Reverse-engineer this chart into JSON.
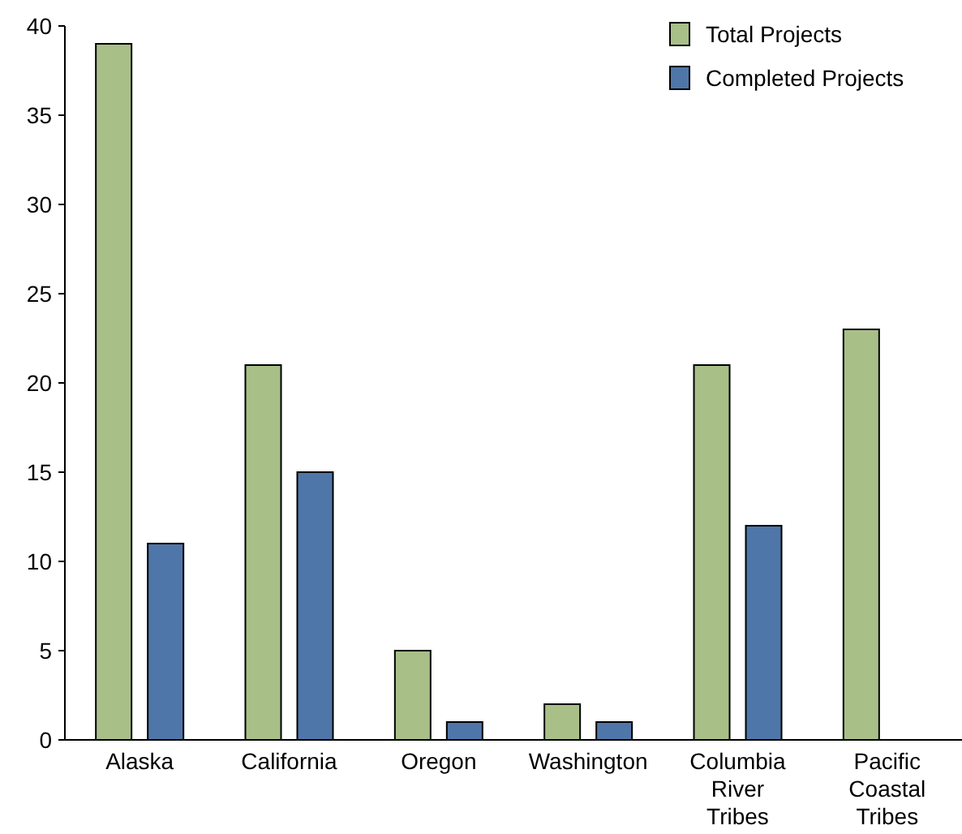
{
  "chart_data": {
    "type": "bar",
    "categories": [
      "Alaska",
      "California",
      "Oregon",
      "Washington",
      "Columbia River Tribes",
      "Pacific Coastal Tribes"
    ],
    "series": [
      {
        "name": "Total Projects",
        "color": "#a8bf88",
        "values": [
          39,
          21,
          5,
          2,
          21,
          23
        ]
      },
      {
        "name": "Completed Projects",
        "color": "#4f76a8",
        "values": [
          11,
          15,
          1,
          1,
          12,
          null
        ]
      }
    ],
    "ylim": [
      0,
      40
    ],
    "yticks": [
      0,
      5,
      10,
      15,
      20,
      25,
      30,
      35,
      40
    ],
    "grid": false,
    "legend": "top right"
  }
}
